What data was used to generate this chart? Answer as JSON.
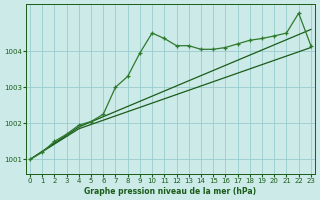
{
  "title": "Graphe pression niveau de la mer (hPa)",
  "background_color": "#cceae7",
  "grid_color": "#99cccc",
  "line_color_dark": "#1a5c1a",
  "line_color_med": "#2d7a2d",
  "xlim": [
    -0.3,
    23.3
  ],
  "ylim": [
    1000.6,
    1005.3
  ],
  "yticks": [
    1001,
    1002,
    1003,
    1004
  ],
  "xticks": [
    0,
    1,
    2,
    3,
    4,
    5,
    6,
    7,
    8,
    9,
    10,
    11,
    12,
    13,
    14,
    15,
    16,
    17,
    18,
    19,
    20,
    21,
    22,
    23
  ],
  "zigzag_x": [
    0,
    1,
    2,
    3,
    4,
    5,
    6,
    7,
    8,
    9,
    10,
    11,
    12,
    13,
    14,
    15,
    16,
    17,
    18,
    19,
    20,
    21,
    22,
    23
  ],
  "zigzag_y": [
    1001.0,
    1001.2,
    1001.5,
    1001.7,
    1001.95,
    1002.05,
    1002.25,
    1003.0,
    1003.3,
    1003.95,
    1004.5,
    1004.35,
    1004.15,
    1004.15,
    1004.05,
    1004.05,
    1004.1,
    1004.2,
    1004.3,
    1004.35,
    1004.42,
    1004.5,
    1005.05,
    1004.15
  ],
  "trend1_x": [
    0,
    4,
    23
  ],
  "trend1_y": [
    1001.0,
    1001.9,
    1004.6
  ],
  "trend2_x": [
    0,
    4,
    23
  ],
  "trend2_y": [
    1001.0,
    1001.85,
    1004.1
  ]
}
